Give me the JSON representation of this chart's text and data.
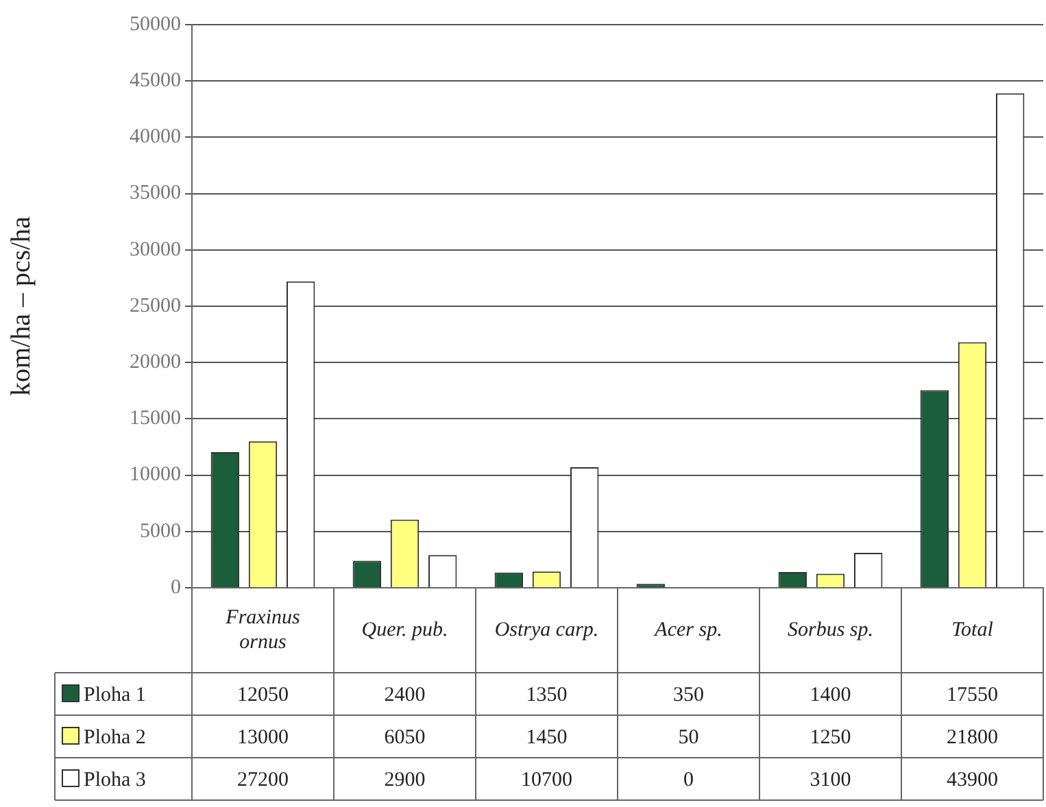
{
  "chart_data": {
    "type": "bar",
    "ylabel": "kom/ha – pcs/ha",
    "categories": [
      "Fraxinus ornus",
      "Quer. pub.",
      "Ostrya carp.",
      "Acer sp.",
      "Sorbus sp.",
      "Total"
    ],
    "series": [
      {
        "name": "Ploha 1",
        "color": "#1b5e3b",
        "values": [
          12050,
          2400,
          1350,
          350,
          1400,
          17550
        ]
      },
      {
        "name": "Ploha 2",
        "color": "#ffff80",
        "values": [
          13000,
          6050,
          1450,
          50,
          1250,
          21800
        ]
      },
      {
        "name": "Ploha 3",
        "color": "#ffffff",
        "values": [
          27200,
          2900,
          10700,
          0,
          3100,
          43900
        ]
      }
    ],
    "ylim": [
      0,
      50000
    ],
    "yticks": [
      0,
      5000,
      10000,
      15000,
      20000,
      25000,
      30000,
      35000,
      40000,
      45000,
      50000
    ],
    "grid": "y",
    "legend": "bottom left",
    "data_labels": true
  }
}
